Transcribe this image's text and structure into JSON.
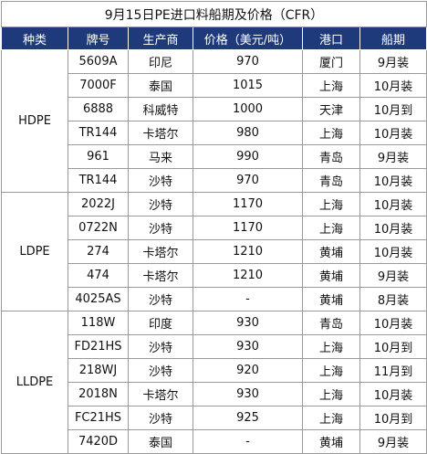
{
  "title": "9月15日PE进口料船期及价格（CFR）",
  "columns": [
    "种类",
    "牌号",
    "生产商",
    "价格（美元/吨）",
    "港口",
    "船期"
  ],
  "groups": [
    {
      "name": "HDPE",
      "rows": [
        {
          "grade": "5609A",
          "producer": "印尼",
          "price": "970",
          "port": "厦门",
          "schedule": "9月装"
        },
        {
          "grade": "7000F",
          "producer": "泰国",
          "price": "1015",
          "port": "上海",
          "schedule": "10月装"
        },
        {
          "grade": "6888",
          "producer": "科威特",
          "price": "1000",
          "port": "天津",
          "schedule": "10月到"
        },
        {
          "grade": "TR144",
          "producer": "卡塔尔",
          "price": "980",
          "port": "上海",
          "schedule": "10月装"
        },
        {
          "grade": "961",
          "producer": "马来",
          "price": "990",
          "port": "青岛",
          "schedule": "9月装"
        },
        {
          "grade": "TR144",
          "producer": "沙特",
          "price": "970",
          "port": "青岛",
          "schedule": "10月装"
        }
      ]
    },
    {
      "name": "LDPE",
      "rows": [
        {
          "grade": "2022J",
          "producer": "沙特",
          "price": "1170",
          "port": "上海",
          "schedule": "10月装"
        },
        {
          "grade": "0722N",
          "producer": "沙特",
          "price": "1170",
          "port": "上海",
          "schedule": "10月装"
        },
        {
          "grade": "274",
          "producer": "卡塔尔",
          "price": "1210",
          "port": "黄埔",
          "schedule": "10月装"
        },
        {
          "grade": "474",
          "producer": "卡塔尔",
          "price": "1210",
          "port": "黄埔",
          "schedule": "9月装"
        },
        {
          "grade": "4025AS",
          "producer": "沙特",
          "price": "-",
          "port": "黄埔",
          "schedule": "8月装"
        }
      ]
    },
    {
      "name": "LLDPE",
      "rows": [
        {
          "grade": "118W",
          "producer": "印度",
          "price": "930",
          "port": "青岛",
          "schedule": "10月装"
        },
        {
          "grade": "FD21HS",
          "producer": "沙特",
          "price": "930",
          "port": "上海",
          "schedule": "10月到"
        },
        {
          "grade": "218WJ",
          "producer": "沙特",
          "price": "920",
          "port": "上海",
          "schedule": "11月到"
        },
        {
          "grade": "2018N",
          "producer": "卡塔尔",
          "price": "930",
          "port": "上海",
          "schedule": "10月装"
        },
        {
          "grade": "FC21HS",
          "producer": "沙特",
          "price": "925",
          "port": "上海",
          "schedule": "10月到"
        },
        {
          "grade": "7420D",
          "producer": "泰国",
          "price": "-",
          "port": "黄埔",
          "schedule": "9月装"
        }
      ]
    }
  ]
}
